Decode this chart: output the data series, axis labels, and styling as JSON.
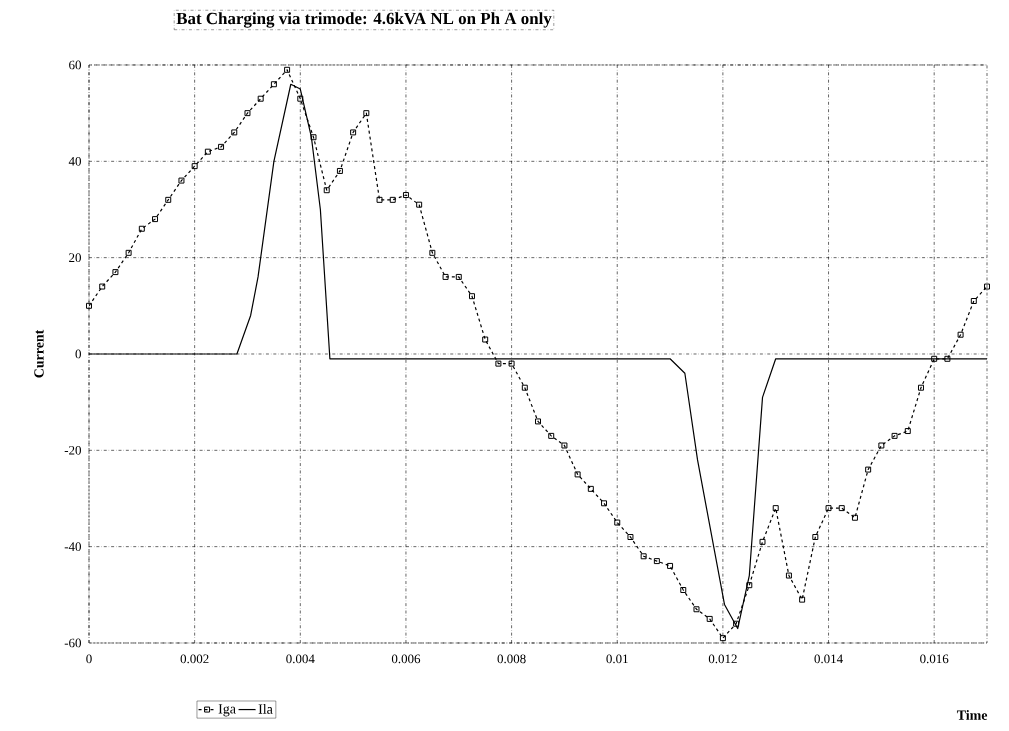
{
  "chart_data": {
    "type": "line",
    "title": "Bat Charging via trimode: 4.6kVA NL on Ph A only",
    "xlabel": "Time",
    "ylabel": "Current",
    "xlim": [
      0,
      0.017
    ],
    "ylim": [
      -60,
      60
    ],
    "xticks": [
      0,
      0.002,
      0.004,
      0.006,
      0.008,
      0.01,
      0.012,
      0.014,
      0.016
    ],
    "yticks": [
      -60,
      -40,
      -20,
      0,
      20,
      40,
      60
    ],
    "grid": true,
    "legend": "bottom",
    "series": [
      {
        "name": "Iga",
        "color": "#000000",
        "marker": "square",
        "line_style": "dashed",
        "x": [
          0,
          0.00025,
          0.0005,
          0.00075,
          0.001,
          0.00125,
          0.0015,
          0.00175,
          0.002,
          0.00225,
          0.0025,
          0.00275,
          0.003,
          0.00325,
          0.0035,
          0.00375,
          0.004,
          0.00425,
          0.0045,
          0.00475,
          0.005,
          0.00525,
          0.0055,
          0.00575,
          0.006,
          0.00625,
          0.0065,
          0.00675,
          0.007,
          0.00725,
          0.0075,
          0.00775,
          0.008,
          0.00825,
          0.0085,
          0.00875,
          0.009,
          0.00925,
          0.0095,
          0.00975,
          0.01,
          0.01025,
          0.0105,
          0.01075,
          0.011,
          0.01125,
          0.0115,
          0.01175,
          0.012,
          0.01225,
          0.0125,
          0.01275,
          0.013,
          0.01325,
          0.0135,
          0.01375,
          0.014,
          0.01425,
          0.0145,
          0.01475,
          0.015,
          0.01525,
          0.0155,
          0.01575,
          0.016,
          0.01625,
          0.0165,
          0.01675,
          0.017
        ],
        "values": [
          10,
          14,
          17,
          21,
          26,
          28,
          32,
          36,
          39,
          42,
          43,
          46,
          50,
          53,
          56,
          59,
          53,
          45,
          34,
          38,
          46,
          50,
          32,
          32,
          33,
          31,
          21,
          16,
          16,
          12,
          3,
          -2,
          -2,
          -7,
          -14,
          -17,
          -19,
          -25,
          -28,
          -31,
          -35,
          -38,
          -42,
          -43,
          -44,
          -49,
          -53,
          -55,
          -59,
          -56,
          -48,
          -39,
          -32,
          -46,
          -51,
          -38,
          -32,
          -32,
          -34,
          -24,
          -19,
          -17,
          -16,
          -7,
          -1,
          -1,
          4,
          11,
          14
        ]
      },
      {
        "name": "Ila",
        "color": "#000000",
        "marker": "none",
        "line_style": "solid",
        "x": [
          0,
          0.0028,
          0.00306,
          0.0032,
          0.0035,
          0.00382,
          0.004,
          0.00421,
          0.00438,
          0.00456,
          0.011,
          0.01128,
          0.01152,
          0.01203,
          0.01228,
          0.0125,
          0.01275,
          0.013,
          0.017
        ],
        "values": [
          0,
          0,
          8,
          16,
          40,
          56,
          55,
          45,
          30,
          -1,
          -1,
          -4,
          -22,
          -52,
          -57,
          -46,
          -9,
          -1,
          -1
        ]
      }
    ]
  }
}
